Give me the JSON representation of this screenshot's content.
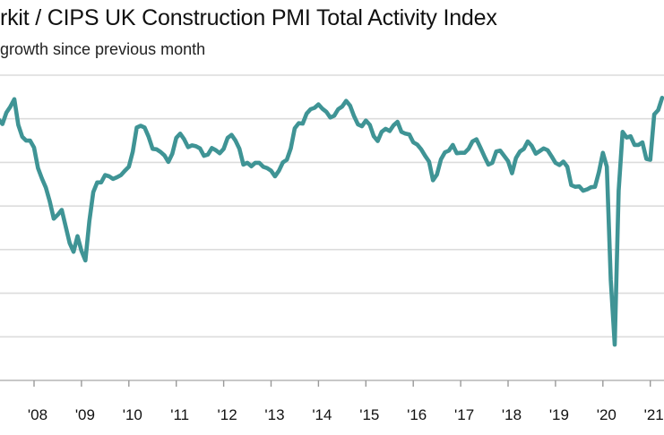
{
  "chart_data": {
    "type": "line",
    "title": "rkit / CIPS UK Construction PMI Total Activity Index",
    "subtitle": "growth since previous month",
    "xlabel": "",
    "ylabel": "",
    "x_tick_labels": [
      "'08",
      "'09",
      "'10",
      "'11",
      "'12",
      "'13",
      "'14",
      "'15",
      "'16",
      "'17",
      "'18",
      "'19",
      "'20",
      "'21"
    ],
    "x_tick_years": [
      2008,
      2009,
      2010,
      2011,
      2012,
      2013,
      2014,
      2015,
      2016,
      2017,
      2018,
      2019,
      2020,
      2021
    ],
    "y_gridlines": [
      0,
      10,
      20,
      30,
      40,
      50,
      60,
      70
    ],
    "ylim": [
      0,
      70
    ],
    "grid": true,
    "line_color": "#3f9495",
    "series": [
      {
        "x": [
          "2007-04",
          "2007-05",
          "2007-06",
          "2007-07",
          "2007-08",
          "2007-09",
          "2007-10",
          "2007-11",
          "2007-12",
          "2008-01",
          "2008-02",
          "2008-03",
          "2008-04",
          "2008-05",
          "2008-06",
          "2008-07",
          "2008-08",
          "2008-09",
          "2008-10",
          "2008-11",
          "2008-12",
          "2009-01",
          "2009-02",
          "2009-03",
          "2009-04",
          "2009-05",
          "2009-06",
          "2009-07",
          "2009-08",
          "2009-09",
          "2009-10",
          "2009-11",
          "2009-12",
          "2010-01",
          "2010-02",
          "2010-03",
          "2010-04",
          "2010-05",
          "2010-06",
          "2010-07",
          "2010-08",
          "2010-09",
          "2010-10",
          "2010-11",
          "2010-12",
          "2011-01",
          "2011-02",
          "2011-03",
          "2011-04",
          "2011-05",
          "2011-06",
          "2011-07",
          "2011-08",
          "2011-09",
          "2011-10",
          "2011-11",
          "2011-12",
          "2012-01",
          "2012-02",
          "2012-03",
          "2012-04",
          "2012-05",
          "2012-06",
          "2012-07",
          "2012-08",
          "2012-09",
          "2012-10",
          "2012-11",
          "2012-12",
          "2013-01",
          "2013-02",
          "2013-03",
          "2013-04",
          "2013-05",
          "2013-06",
          "2013-07",
          "2013-08",
          "2013-09",
          "2013-10",
          "2013-11",
          "2013-12",
          "2014-01",
          "2014-02",
          "2014-03",
          "2014-04",
          "2014-05",
          "2014-06",
          "2014-07",
          "2014-08",
          "2014-09",
          "2014-10",
          "2014-11",
          "2014-12",
          "2015-01",
          "2015-02",
          "2015-03",
          "2015-04",
          "2015-05",
          "2015-06",
          "2015-07",
          "2015-08",
          "2015-09",
          "2015-10",
          "2015-11",
          "2015-12",
          "2016-01",
          "2016-02",
          "2016-03",
          "2016-04",
          "2016-05",
          "2016-06",
          "2016-07",
          "2016-08",
          "2016-09",
          "2016-10",
          "2016-11",
          "2016-12",
          "2017-01",
          "2017-02",
          "2017-03",
          "2017-04",
          "2017-05",
          "2017-06",
          "2017-07",
          "2017-08",
          "2017-09",
          "2017-10",
          "2017-11",
          "2017-12",
          "2018-01",
          "2018-02",
          "2018-03",
          "2018-04",
          "2018-05",
          "2018-06",
          "2018-07",
          "2018-08",
          "2018-09",
          "2018-10",
          "2018-11",
          "2018-12",
          "2019-01",
          "2019-02",
          "2019-03",
          "2019-04",
          "2019-05",
          "2019-06",
          "2019-07",
          "2019-08",
          "2019-09",
          "2019-10",
          "2019-11",
          "2019-12",
          "2020-01",
          "2020-02",
          "2020-03",
          "2020-04",
          "2020-05",
          "2020-06",
          "2020-07",
          "2020-08",
          "2020-09",
          "2020-10",
          "2020-11",
          "2020-12",
          "2021-01",
          "2021-02",
          "2021-03",
          "2021-04"
        ],
        "values": [
          59.9,
          58.8,
          61.4,
          62.8,
          64.5,
          58.6,
          55.9,
          55.0,
          55.0,
          53.4,
          48.7,
          46.3,
          44.2,
          41.0,
          37.1,
          38.0,
          39.1,
          35.3,
          31.5,
          29.5,
          33.1,
          29.7,
          27.5,
          36.5,
          43.2,
          45.4,
          45.4,
          47.1,
          46.8,
          46.2,
          46.6,
          47.1,
          48.1,
          49.0,
          52.5,
          58.0,
          58.4,
          58.0,
          55.9,
          53.1,
          53.0,
          52.4,
          51.6,
          50.1,
          52.0,
          55.6,
          56.6,
          55.3,
          53.5,
          53.9,
          53.7,
          53.2,
          51.5,
          51.8,
          53.3,
          52.8,
          52.1,
          53.1,
          55.6,
          56.3,
          55.0,
          53.1,
          49.5,
          49.9,
          49.1,
          49.9,
          49.9,
          49.0,
          48.7,
          48.1,
          46.8,
          48.1,
          50.0,
          50.6,
          53.2,
          57.8,
          59.0,
          58.9,
          61.2,
          62.2,
          62.5,
          63.3,
          62.3,
          61.6,
          60.3,
          60.7,
          62.2,
          62.8,
          64.1,
          63.0,
          60.6,
          58.7,
          58.3,
          59.6,
          58.6,
          56.0,
          54.9,
          57.0,
          57.7,
          57.2,
          58.5,
          59.3,
          57.0,
          56.6,
          56.4,
          54.6,
          54.1,
          53.0,
          51.5,
          50.2,
          45.9,
          47.2,
          50.7,
          52.3,
          52.7,
          54.0,
          52.1,
          52.2,
          52.2,
          53.1,
          54.8,
          55.3,
          53.4,
          51.4,
          49.5,
          49.9,
          52.5,
          52.7,
          51.5,
          50.3,
          47.5,
          51.0,
          52.5,
          53.1,
          54.8,
          53.8,
          52.0,
          52.6,
          53.2,
          52.8,
          51.4,
          49.9,
          49.4,
          50.2,
          49.0,
          44.8,
          44.4,
          44.5,
          43.5,
          43.8,
          44.3,
          44.4,
          47.8,
          52.2,
          49.0,
          23.0,
          8.2,
          43.5,
          57.0,
          55.7,
          56.0,
          54.0,
          54.0,
          54.6,
          50.8,
          50.6,
          61.0,
          62.0,
          64.8
        ]
      }
    ]
  }
}
